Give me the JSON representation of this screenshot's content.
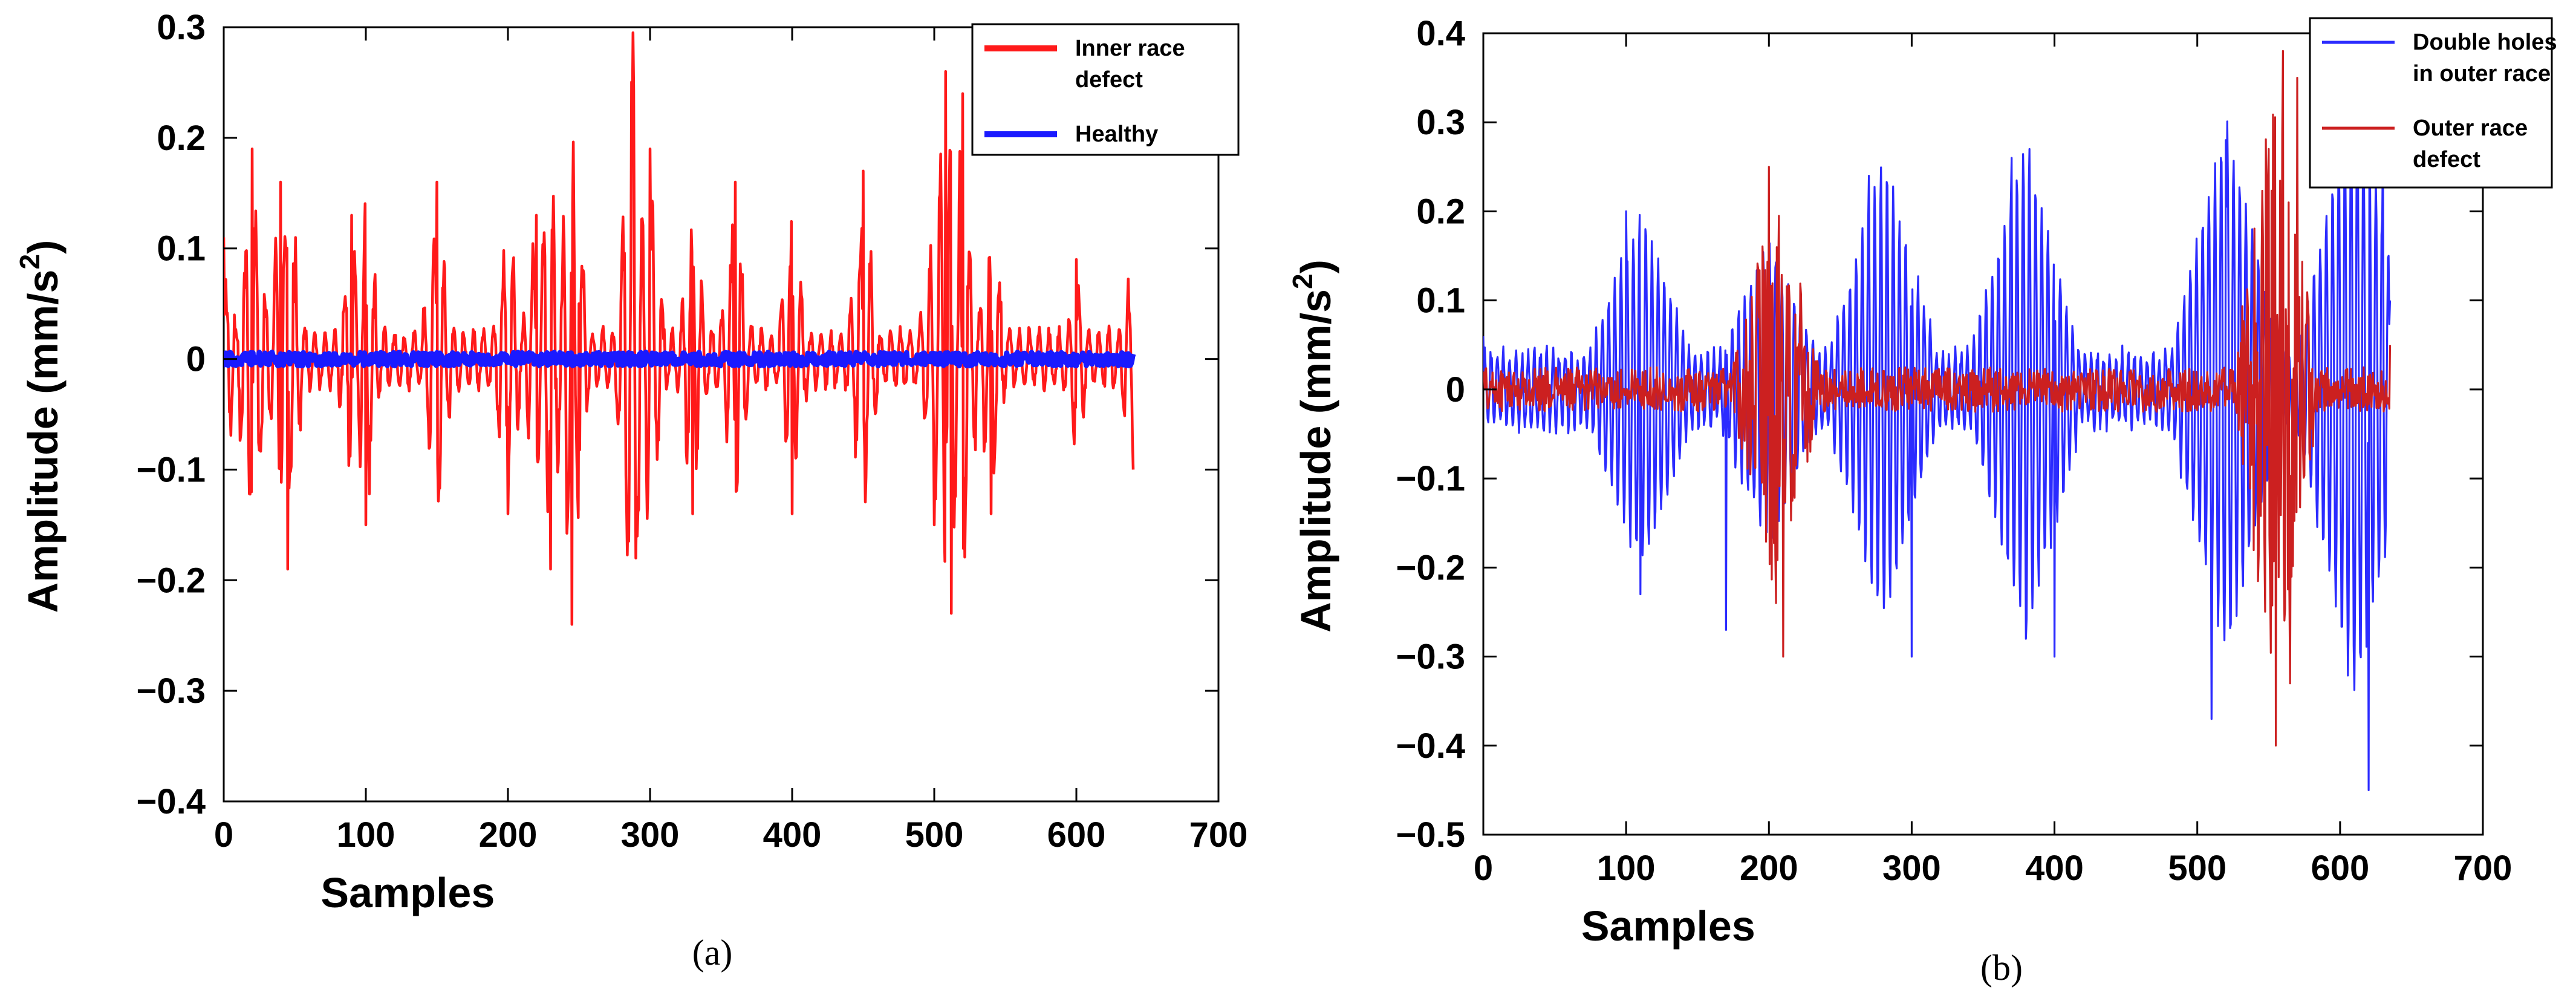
{
  "chart_data": [
    {
      "type": "line",
      "panel_label": "(a)",
      "title": "",
      "xlabel": "Samples",
      "ylabel": "Amplitude (mm/s",
      "ylabel_superscript": "2",
      "ylabel_suffix": ")",
      "xlim": [
        0,
        700
      ],
      "ylim": [
        -0.4,
        0.3
      ],
      "xticks": [
        "0",
        "100",
        "200",
        "300",
        "400",
        "500",
        "600",
        "700"
      ],
      "yticks": [
        "-0.4",
        "-0.3",
        "-0.2",
        "-0.1",
        "0",
        "0.1",
        "0.2",
        "0.3"
      ],
      "xtick_values": [
        0,
        100,
        200,
        300,
        400,
        500,
        600,
        700
      ],
      "ytick_values": [
        -0.4,
        -0.3,
        -0.2,
        -0.1,
        0,
        0.1,
        0.2,
        0.3
      ],
      "grid": false,
      "legend_position": "top-right",
      "series": [
        {
          "name": "Inner race defect",
          "legend_lines": [
            "Inner race",
            "defect"
          ],
          "color": "#ff1a1a",
          "x": [
            0,
            40,
            20,
            45,
            90,
            100,
            150,
            200,
            220,
            230,
            245,
            250,
            288,
            290,
            300,
            330,
            360,
            400,
            450,
            500,
            508,
            512,
            520,
            540,
            600,
            640
          ],
          "y": [
            0.11,
            0.16,
            0.19,
            -0.19,
            0.13,
            -0.15,
            0.16,
            -0.14,
            0.13,
            -0.19,
            -0.24,
            0.05,
            0.295,
            -0.18,
            0.19,
            -0.14,
            0.16,
            -0.14,
            0.17,
            -0.15,
            0.26,
            -0.23,
            0.24,
            -0.14,
            0.09,
            -0.1
          ]
        },
        {
          "name": "Healthy",
          "legend_lines": [
            "Healthy"
          ],
          "color": "#1a1aff",
          "x": [
            0,
            100,
            200,
            300,
            400,
            500,
            600,
            640
          ],
          "y": [
            0,
            0,
            0,
            0,
            0,
            0,
            0,
            0
          ]
        }
      ]
    },
    {
      "type": "line",
      "panel_label": "(b)",
      "title": "",
      "xlabel": "Samples",
      "ylabel": "Amplitude (mm/s",
      "ylabel_superscript": "2",
      "ylabel_suffix": ")",
      "xlim": [
        0,
        700
      ],
      "ylim": [
        -0.5,
        0.4
      ],
      "xticks": [
        "0",
        "100",
        "200",
        "300",
        "400",
        "500",
        "600",
        "700"
      ],
      "yticks": [
        "-0.5",
        "-0.4",
        "-0.3",
        "-0.2",
        "-0.1",
        "0",
        "0.1",
        "0.2",
        "0.3",
        "0.4"
      ],
      "xtick_values": [
        0,
        100,
        200,
        300,
        400,
        500,
        600,
        700
      ],
      "ytick_values": [
        -0.5,
        -0.4,
        -0.3,
        -0.2,
        -0.1,
        0,
        0.1,
        0.2,
        0.3,
        0.4
      ],
      "grid": false,
      "legend_position": "top-right",
      "series": [
        {
          "name": "Double holes in outer race",
          "legend_lines": [
            "Double holes",
            "in outer race"
          ],
          "color": "#2b2bff",
          "x": [
            0,
            100,
            110,
            170,
            270,
            300,
            370,
            380,
            400,
            510,
            520,
            620,
            630,
            635
          ],
          "y": [
            0.06,
            0.2,
            -0.23,
            -0.27,
            0.24,
            -0.3,
            0.26,
            -0.28,
            -0.3,
            -0.37,
            0.28,
            -0.45,
            0.28,
            0.1
          ]
        },
        {
          "name": "Outer race defect",
          "legend_lines": [
            "Outer race",
            "defect"
          ],
          "color": "#cc2020",
          "x": [
            0,
            200,
            205,
            210,
            550,
            555,
            560,
            565,
            570,
            635
          ],
          "y": [
            0.02,
            0.25,
            -0.24,
            -0.3,
            0.27,
            -0.4,
            0.38,
            -0.33,
            0.35,
            0.05
          ]
        }
      ]
    }
  ]
}
